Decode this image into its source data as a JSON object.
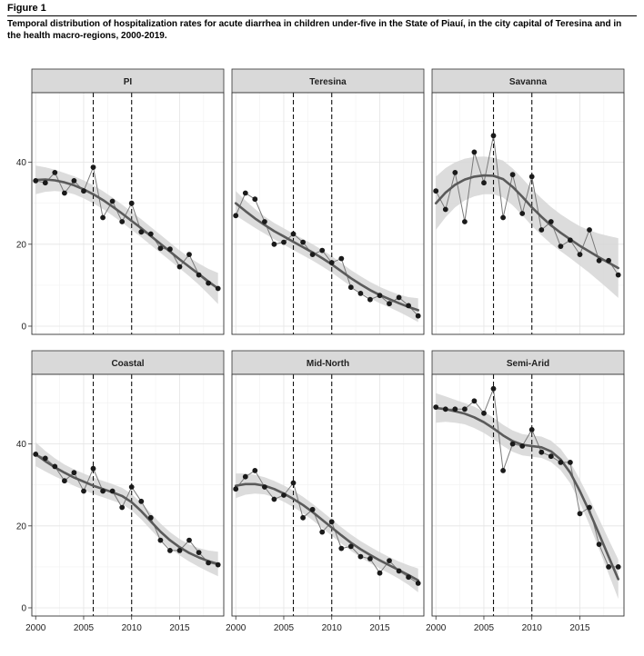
{
  "figure": {
    "label": "Figure 1",
    "caption": "Temporal distribution of hospitalization rates for acute diarrhea in children under-five in the State of Piauí, in the city capital of Teresina and in the health macro-regions, 2000-2019."
  },
  "chart_data": {
    "type": "line",
    "layout": "facet-grid 2x3",
    "x_ticks": [
      2000,
      2005,
      2010,
      2015
    ],
    "y_ticks": [
      0,
      20,
      40
    ],
    "xlim": [
      1999.6,
      2019.6
    ],
    "ylim": [
      -2,
      57
    ],
    "reference_lines_x": [
      2006,
      2010
    ],
    "grid": true,
    "colors": {
      "points": "#1a1a1a",
      "observed_line": "#7a7a7a",
      "trend_line": "#5a5a5a",
      "ribbon": "#d6d6d6",
      "strip": "#d9d9d9"
    },
    "x": [
      2000,
      2001,
      2002,
      2003,
      2004,
      2005,
      2006,
      2007,
      2008,
      2009,
      2010,
      2011,
      2012,
      2013,
      2014,
      2015,
      2016,
      2017,
      2018,
      2019
    ],
    "panels": [
      {
        "label": "PI",
        "values": [
          35.5,
          35.0,
          37.5,
          32.5,
          35.5,
          33.0,
          38.8,
          26.5,
          30.5,
          25.5,
          30.0,
          23.0,
          22.5,
          19.0,
          18.8,
          14.5,
          17.5,
          12.5,
          10.5,
          9.2
        ],
        "trend": [
          35.7,
          35.8,
          35.6,
          35.1,
          34.4,
          33.4,
          32.2,
          30.8,
          29.2,
          27.5,
          25.7,
          23.9,
          22.0,
          20.1,
          18.2,
          16.3,
          14.5,
          12.7,
          10.9,
          9.2
        ],
        "ci": [
          3.5,
          3.0,
          2.6,
          2.3,
          2.2,
          2.2,
          2.2,
          2.2,
          2.2,
          2.2,
          2.2,
          2.2,
          2.2,
          2.2,
          2.2,
          2.2,
          2.3,
          2.6,
          3.1,
          3.8
        ]
      },
      {
        "label": "Teresina",
        "values": [
          27.0,
          32.5,
          31.0,
          25.5,
          20.0,
          20.5,
          22.5,
          20.5,
          17.5,
          18.5,
          15.5,
          16.5,
          9.5,
          8.0,
          6.5,
          7.5,
          5.5,
          7.0,
          5.0,
          2.5
        ],
        "trend": [
          30.0,
          28.1,
          26.3,
          24.7,
          23.2,
          21.9,
          20.6,
          19.3,
          18.0,
          16.6,
          15.1,
          13.4,
          11.7,
          10.2,
          8.8,
          7.6,
          6.6,
          5.6,
          4.7,
          3.9
        ],
        "ci": [
          3.0,
          2.6,
          2.3,
          2.1,
          2.0,
          2.0,
          2.0,
          2.0,
          2.0,
          2.0,
          2.0,
          2.0,
          2.0,
          2.0,
          2.0,
          2.0,
          2.0,
          2.1,
          2.4,
          2.9
        ]
      },
      {
        "label": "Savanna",
        "values": [
          33.0,
          28.5,
          37.5,
          25.5,
          42.5,
          35.0,
          46.5,
          26.5,
          37.0,
          27.5,
          36.5,
          23.5,
          25.5,
          19.5,
          21.0,
          17.5,
          23.5,
          16.0,
          16.0,
          12.5
        ],
        "trend": [
          30.0,
          32.6,
          34.5,
          35.8,
          36.5,
          36.8,
          36.7,
          35.9,
          34.0,
          31.6,
          29.0,
          26.7,
          24.6,
          22.8,
          21.2,
          19.6,
          18.2,
          16.8,
          15.5,
          14.2
        ],
        "ci": [
          6.5,
          6.0,
          5.5,
          5.1,
          4.8,
          4.6,
          4.5,
          4.5,
          4.5,
          4.5,
          4.5,
          4.5,
          4.5,
          4.5,
          4.6,
          4.8,
          5.2,
          5.8,
          6.5,
          7.3
        ]
      },
      {
        "label": "Coastal",
        "values": [
          37.5,
          36.5,
          34.5,
          31.0,
          33.0,
          28.5,
          34.0,
          28.5,
          28.5,
          24.5,
          29.5,
          26.0,
          22.0,
          16.5,
          14.0,
          14.0,
          16.5,
          13.5,
          11.0,
          10.5
        ],
        "trend": [
          37.5,
          35.8,
          34.3,
          33.0,
          31.8,
          30.8,
          29.8,
          29.0,
          28.2,
          27.3,
          25.8,
          23.6,
          21.1,
          18.6,
          16.5,
          14.8,
          13.4,
          12.3,
          11.4,
          10.7
        ],
        "ci": [
          2.9,
          2.5,
          2.2,
          2.0,
          2.0,
          2.0,
          2.0,
          2.0,
          2.0,
          2.0,
          2.0,
          2.0,
          2.0,
          2.0,
          2.0,
          2.0,
          2.1,
          2.3,
          2.6,
          3.0
        ]
      },
      {
        "label": "Mid-North",
        "values": [
          29.0,
          32.0,
          33.5,
          29.5,
          26.5,
          27.5,
          30.5,
          22.0,
          24.0,
          18.5,
          21.0,
          14.5,
          15.0,
          12.5,
          12.0,
          8.5,
          11.5,
          9.0,
          7.5,
          6.0
        ],
        "trend": [
          29.8,
          30.2,
          30.2,
          29.8,
          29.0,
          27.9,
          26.6,
          25.1,
          23.4,
          21.5,
          19.6,
          17.7,
          15.9,
          14.3,
          12.9,
          11.6,
          10.4,
          9.2,
          8.0,
          6.7
        ],
        "ci": [
          3.0,
          2.6,
          2.3,
          2.1,
          2.0,
          2.0,
          2.0,
          2.0,
          2.0,
          2.0,
          2.0,
          2.0,
          2.0,
          2.0,
          2.0,
          2.0,
          2.0,
          2.1,
          2.4,
          2.9
        ]
      },
      {
        "label": "Semi-Arid",
        "values": [
          49.0,
          48.5,
          48.5,
          48.5,
          50.5,
          47.5,
          53.5,
          33.5,
          40.0,
          39.5,
          43.5,
          38.0,
          37.0,
          35.5,
          35.5,
          23.0,
          24.5,
          15.5,
          10.0,
          10.0
        ],
        "trend": [
          48.8,
          48.5,
          48.0,
          47.4,
          46.5,
          45.3,
          43.8,
          42.1,
          40.7,
          39.8,
          39.5,
          39.2,
          38.2,
          36.2,
          33.0,
          28.5,
          23.5,
          18.0,
          12.5,
          7.0
        ],
        "ci": [
          3.6,
          3.1,
          2.8,
          2.6,
          2.6,
          2.6,
          2.6,
          2.6,
          2.6,
          2.6,
          2.6,
          2.6,
          2.6,
          2.6,
          2.6,
          2.8,
          3.2,
          3.7,
          4.2,
          4.8
        ]
      }
    ]
  }
}
